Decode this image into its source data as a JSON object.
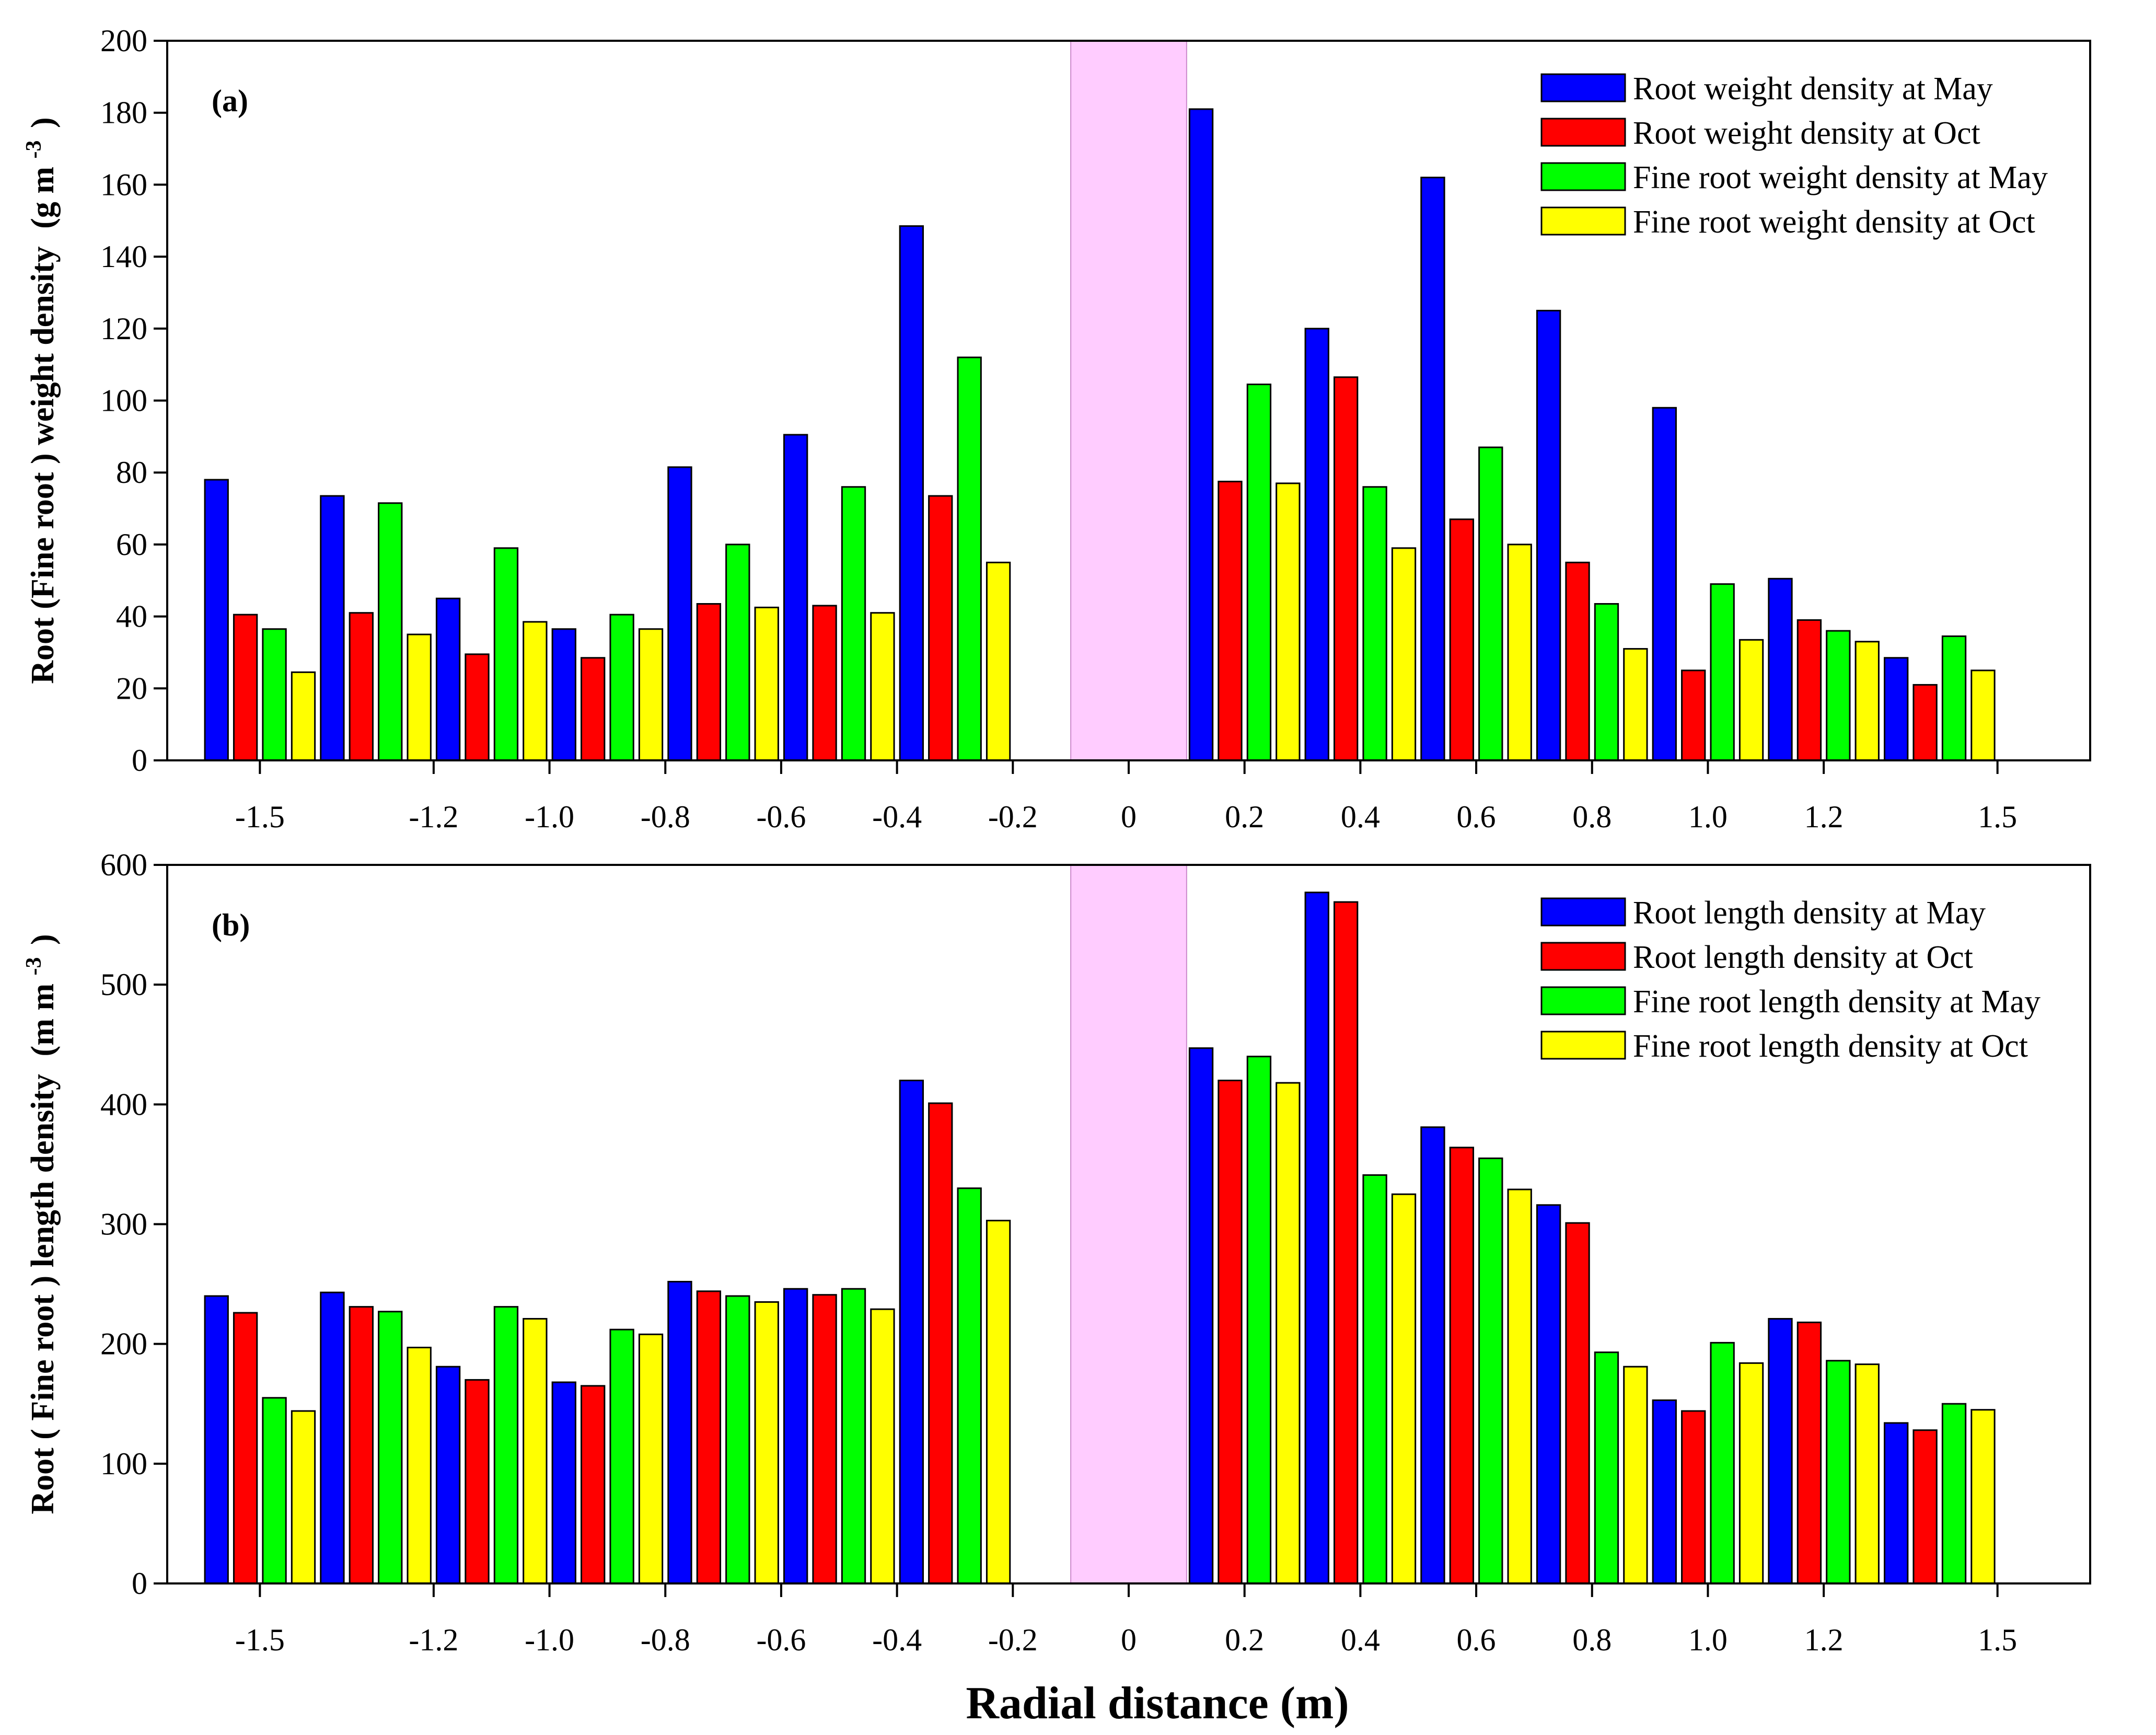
{
  "figure": {
    "xlabel": "Radial distance (m)"
  },
  "colors": {
    "may_root": "#0000ff",
    "oct_root": "#ff0000",
    "may_fine": "#00ff00",
    "oct_fine": "#ffff00",
    "trunk_band": "#ffccff",
    "trunk_band_edge": "#cc88cc"
  },
  "chart_data": [
    {
      "type": "bar",
      "panel_label": "(a)",
      "ylabel": "Root (Fine root ) weight density (g m-3)",
      "ylabel_main": "Root (Fine root ) weight density",
      "ylabel_unit": "(g m",
      "ylabel_exp": "-3",
      "ylabel_close": ")",
      "ylim": [
        0,
        200
      ],
      "yticks": [
        0,
        20,
        40,
        60,
        80,
        100,
        120,
        140,
        160,
        180,
        200
      ],
      "xlim": [
        -1.66,
        1.66
      ],
      "xticks": [
        -1.5,
        -1.2,
        -1.0,
        -0.8,
        -0.6,
        -0.4,
        -0.2,
        0,
        0.2,
        0.4,
        0.6,
        0.8,
        1.0,
        1.2,
        1.5
      ],
      "xticklabels": [
        "-1.5",
        "-1.2",
        "-1.0",
        "-0.8",
        "-0.6",
        "-0.4",
        "-0.2",
        "0",
        "0.2",
        "0.4",
        "0.6",
        "0.8",
        "1.0",
        "1.2",
        "1.5"
      ],
      "trunk_band": [
        -0.1,
        0.1
      ],
      "categories": [
        "-1.5",
        "-1.3",
        "-1.1",
        "-0.9",
        "-0.7",
        "-0.5",
        "-0.3",
        "0.1",
        "0.3",
        "0.5",
        "0.7",
        "0.9",
        "1.1",
        "1.3"
      ],
      "group_starts": [
        -1.6,
        -1.4,
        -1.2,
        -1.0,
        -0.8,
        -0.6,
        -0.4,
        0.1,
        0.3,
        0.5,
        0.7,
        0.9,
        1.1,
        1.3
      ],
      "legend_position": "top-right",
      "series": [
        {
          "name": "Root weight density at May",
          "color_key": "may_root",
          "values": [
            78,
            73.5,
            45,
            36.5,
            81.5,
            90.5,
            148.5,
            181,
            120,
            162,
            125,
            98,
            50.5,
            28.5
          ]
        },
        {
          "name": "Root weight density at Oct",
          "color_key": "oct_root",
          "values": [
            40.5,
            41,
            29.5,
            28.5,
            43.5,
            43,
            73.5,
            77.5,
            106.5,
            67,
            55,
            25,
            39,
            21
          ]
        },
        {
          "name": "Fine root weight density at May",
          "color_key": "may_fine",
          "values": [
            36.5,
            71.5,
            59,
            40.5,
            60,
            76,
            112,
            104.5,
            76,
            87,
            43.5,
            49,
            36,
            34.5
          ]
        },
        {
          "name": "Fine root weight density at Oct",
          "color_key": "oct_fine",
          "values": [
            24.5,
            35,
            38.5,
            36.5,
            42.5,
            41,
            55,
            77,
            59,
            60,
            31,
            33.5,
            33,
            25
          ]
        }
      ]
    },
    {
      "type": "bar",
      "panel_label": "(b)",
      "ylabel": "Root ( Fine root ) length density (m m-3)",
      "ylabel_main": "Root ( Fine root ) length density",
      "ylabel_unit": "(m m",
      "ylabel_exp": "-3",
      "ylabel_close": ")",
      "ylim": [
        0,
        600
      ],
      "yticks": [
        0,
        100,
        200,
        300,
        400,
        500,
        600
      ],
      "xlim": [
        -1.66,
        1.66
      ],
      "xticks": [
        -1.5,
        -1.2,
        -1.0,
        -0.8,
        -0.6,
        -0.4,
        -0.2,
        0,
        0.2,
        0.4,
        0.6,
        0.8,
        1.0,
        1.2,
        1.5
      ],
      "xticklabels": [
        "-1.5",
        "-1.2",
        "-1.0",
        "-0.8",
        "-0.6",
        "-0.4",
        "-0.2",
        "0",
        "0.2",
        "0.4",
        "0.6",
        "0.8",
        "1.0",
        "1.2",
        "1.5"
      ],
      "trunk_band": [
        -0.1,
        0.1
      ],
      "categories": [
        "-1.5",
        "-1.3",
        "-1.1",
        "-0.9",
        "-0.7",
        "-0.5",
        "-0.3",
        "0.1",
        "0.3",
        "0.5",
        "0.7",
        "0.9",
        "1.1",
        "1.3"
      ],
      "group_starts": [
        -1.6,
        -1.4,
        -1.2,
        -1.0,
        -0.8,
        -0.6,
        -0.4,
        0.1,
        0.3,
        0.5,
        0.7,
        0.9,
        1.1,
        1.3
      ],
      "legend_position": "top-right",
      "series": [
        {
          "name": "Root length density at May",
          "color_key": "may_root",
          "values": [
            240,
            243,
            181,
            168,
            252,
            246,
            420,
            447,
            577,
            381,
            316,
            153,
            221,
            134
          ]
        },
        {
          "name": "Root length density at Oct",
          "color_key": "oct_root",
          "values": [
            226,
            231,
            170,
            165,
            244,
            241,
            401,
            420,
            569,
            364,
            301,
            144,
            218,
            128
          ]
        },
        {
          "name": "Fine root length density at May",
          "color_key": "may_fine",
          "values": [
            155,
            227,
            231,
            212,
            240,
            246,
            330,
            440,
            341,
            355,
            193,
            201,
            186,
            150
          ]
        },
        {
          "name": "Fine root length density at Oct",
          "color_key": "oct_fine",
          "values": [
            144,
            197,
            221,
            208,
            235,
            229,
            303,
            418,
            325,
            329,
            181,
            184,
            183,
            145
          ]
        }
      ]
    }
  ]
}
